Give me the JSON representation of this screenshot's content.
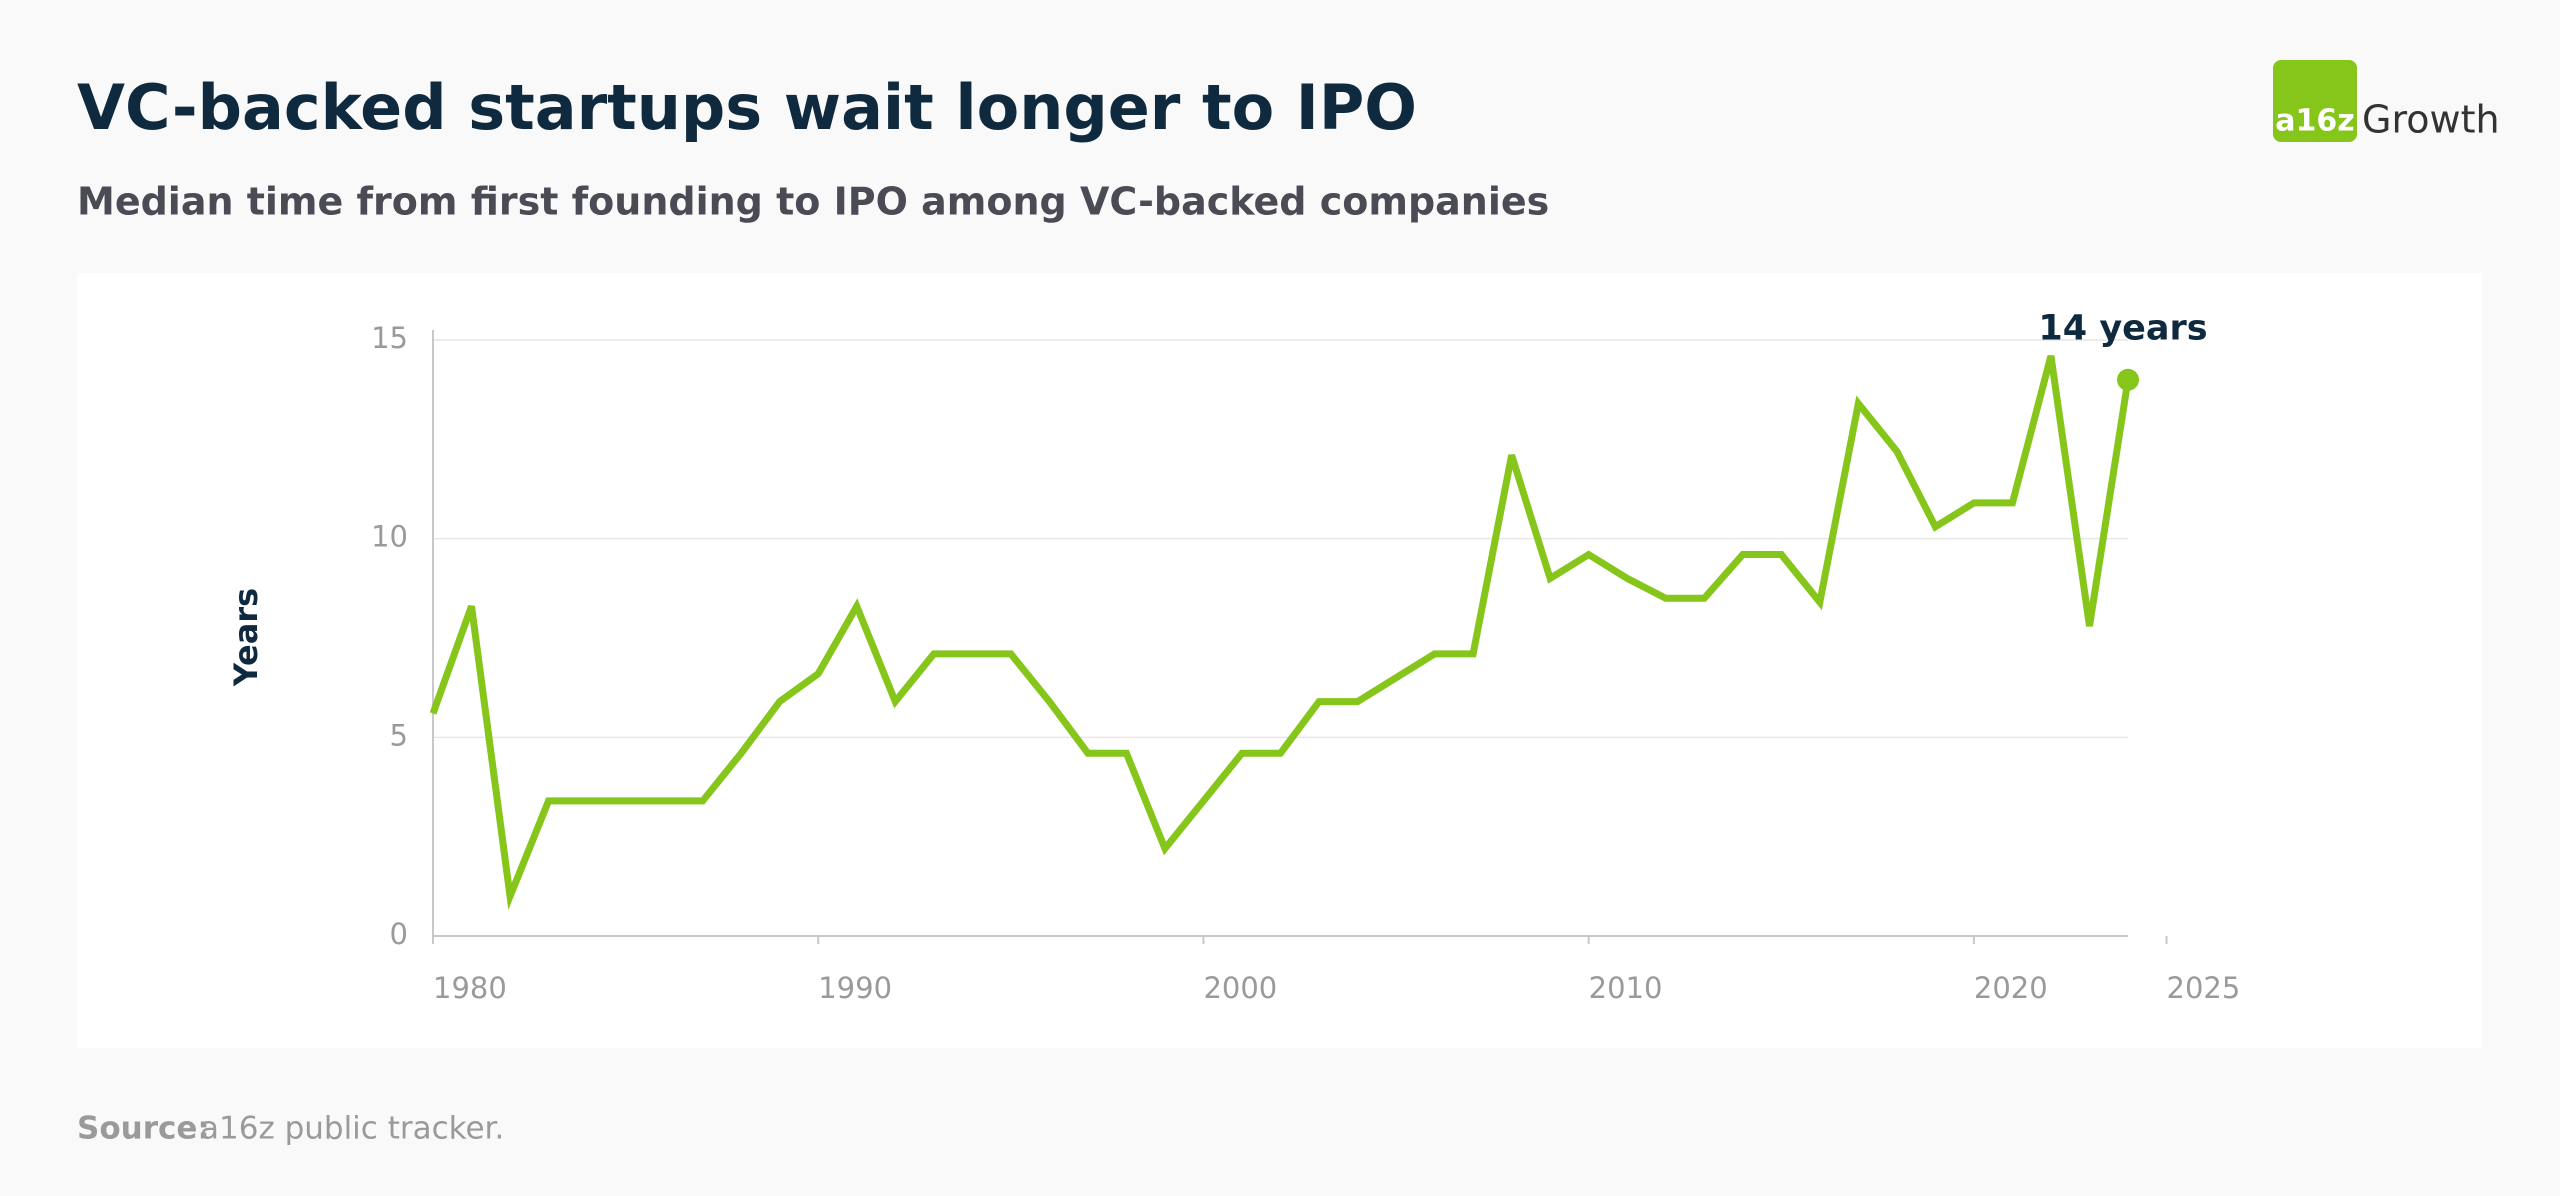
{
  "header": {
    "title": "VC-backed startups wait longer to IPO",
    "subtitle": "Median time from first founding to IPO among VC-backed companies"
  },
  "logo": {
    "mark": "a16z",
    "text": "Growth"
  },
  "chart_data": {
    "type": "line",
    "y_label": "Years",
    "annotation": "14 years",
    "color": "#86c51a",
    "x": [
      1980,
      1981,
      1982,
      1983,
      1984,
      1985,
      1986,
      1987,
      1988,
      1989,
      1990,
      1991,
      1992,
      1993,
      1994,
      1995,
      1996,
      1997,
      1998,
      1999,
      2000,
      2001,
      2002,
      2003,
      2004,
      2005,
      2006,
      2007,
      2008,
      2009,
      2010,
      2011,
      2012,
      2013,
      2014,
      2015,
      2016,
      2017,
      2018,
      2019,
      2020,
      2021,
      2022,
      2023,
      2024
    ],
    "values": [
      5.6,
      8.3,
      1.0,
      3.4,
      3.4,
      3.4,
      3.4,
      3.4,
      4.6,
      5.9,
      6.6,
      8.3,
      5.9,
      7.1,
      7.1,
      7.1,
      5.9,
      4.6,
      4.6,
      2.2,
      3.4,
      4.6,
      4.6,
      5.9,
      5.9,
      6.5,
      7.1,
      7.1,
      12.1,
      9.0,
      9.6,
      9.0,
      8.5,
      8.5,
      9.6,
      9.6,
      8.4,
      13.4,
      12.2,
      10.3,
      10.9,
      10.9,
      14.6,
      7.8,
      14.0
    ],
    "xlim": [
      1980,
      2024
    ],
    "xticks": [
      1980,
      1990,
      2000,
      2010,
      2020,
      2025
    ],
    "ylim": [
      0,
      15
    ],
    "yticks": [
      0,
      5,
      10,
      15
    ],
    "grid": true
  },
  "source": {
    "label": "Source:",
    "text": "a16z public tracker."
  }
}
